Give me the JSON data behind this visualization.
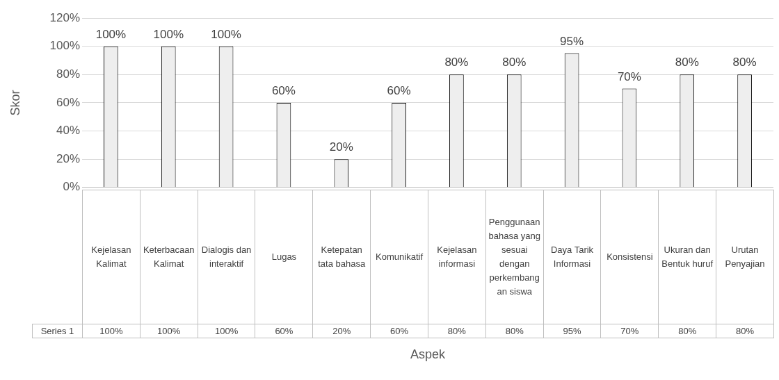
{
  "chart_data": {
    "type": "bar",
    "xlabel": "Aspek",
    "ylabel": "Skor",
    "categories": [
      "Kejelasan Kalimat",
      "Keterbacaan Kalimat",
      "Dialogis dan interaktif",
      "Lugas",
      "Ketepatan tata bahasa",
      "Komunikatif",
      "Kejelasan informasi",
      "Penggunaan bahasa yang sesuai dengan perkembangan siswa",
      "Daya Tarik Informasi",
      "Konsistensi",
      "Ukuran dan Bentuk huruf",
      "Urutan Penyajian"
    ],
    "series": [
      {
        "name": "Series 1",
        "color": "#eeeeee",
        "values": [
          100,
          100,
          100,
          60,
          20,
          60,
          80,
          80,
          95,
          70,
          80,
          80
        ],
        "value_labels": [
          "100%",
          "100%",
          "100%",
          "60%",
          "20%",
          "60%",
          "80%",
          "80%",
          "95%",
          "70%",
          "80%",
          "80%"
        ]
      }
    ],
    "ylim": [
      0,
      120
    ],
    "yticks": [
      {
        "value": 0,
        "label": "0%"
      },
      {
        "value": 20,
        "label": "20%"
      },
      {
        "value": 40,
        "label": "40%"
      },
      {
        "value": 60,
        "label": "60%"
      },
      {
        "value": 80,
        "label": "80%"
      },
      {
        "value": 100,
        "label": "100%"
      },
      {
        "value": 120,
        "label": "120%"
      }
    ],
    "grid": "y",
    "legend": false
  }
}
